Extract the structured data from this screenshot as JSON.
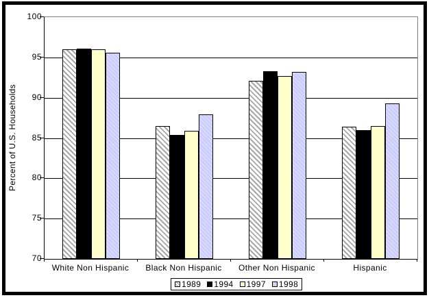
{
  "chart_data": {
    "type": "bar",
    "title": "",
    "xlabel": "",
    "ylabel": "Percent of U.S. Households",
    "ylim": [
      70,
      100
    ],
    "yticks": [
      100,
      95,
      90,
      85,
      80,
      75,
      70
    ],
    "grid": "horizontal",
    "legend_position": "bottom-center",
    "categories": [
      "White Non Hispanic",
      "Black Non Hispanic",
      "Other Non Hispanic",
      "Hispanic"
    ],
    "series": [
      {
        "name": "1989",
        "values": [
          96.0,
          86.5,
          92.1,
          86.4
        ],
        "fill": {
          "type": "hatch",
          "bg": "#ffffff",
          "stripe": "#a6a6a6"
        }
      },
      {
        "name": "1994",
        "values": [
          96.1,
          85.4,
          93.3,
          86.0
        ],
        "fill": {
          "type": "solid",
          "color": "#000000"
        }
      },
      {
        "name": "1997",
        "values": [
          96.0,
          85.9,
          92.7,
          86.5
        ],
        "fill": {
          "type": "solid",
          "color": "#ffffcc"
        }
      },
      {
        "name": "1998",
        "values": [
          95.6,
          87.9,
          93.2,
          89.3
        ],
        "fill": {
          "type": "texture",
          "color": "#ccccff"
        }
      }
    ]
  },
  "style": {
    "background": "#ffffff",
    "frame_color": "#000000",
    "axis_color": "#000000",
    "gridline_color": "#000000",
    "plot_border_gray": "#808080"
  }
}
